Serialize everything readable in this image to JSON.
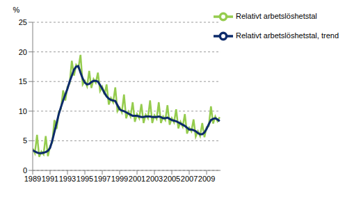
{
  "chart_data": {
    "type": "line",
    "y_label": "%",
    "grid": true,
    "legend": "upper right",
    "xlim": [
      1989,
      2010.6
    ],
    "xticks": [
      1989,
      1991,
      1993,
      1995,
      1997,
      1999,
      2001,
      2003,
      2005,
      2007,
      2009
    ],
    "ylim": [
      0,
      25
    ],
    "yticks": [
      0,
      5,
      10,
      15,
      20,
      25
    ],
    "x": [
      1989,
      1989.25,
      1989.5,
      1989.75,
      1990,
      1990.25,
      1990.5,
      1990.75,
      1991,
      1991.25,
      1991.5,
      1991.75,
      1992,
      1992.25,
      1992.5,
      1992.75,
      1993,
      1993.25,
      1993.5,
      1993.75,
      1994,
      1994.25,
      1994.5,
      1994.75,
      1995,
      1995.25,
      1995.5,
      1995.75,
      1996,
      1996.25,
      1996.5,
      1996.75,
      1997,
      1997.25,
      1997.5,
      1997.75,
      1998,
      1998.25,
      1998.5,
      1998.75,
      1999,
      1999.25,
      1999.5,
      1999.75,
      2000,
      2000.25,
      2000.5,
      2000.75,
      2001,
      2001.25,
      2001.5,
      2001.75,
      2002,
      2002.25,
      2002.5,
      2002.75,
      2003,
      2003.25,
      2003.5,
      2003.75,
      2004,
      2004.25,
      2004.5,
      2004.75,
      2005,
      2005.25,
      2005.5,
      2005.75,
      2006,
      2006.25,
      2006.5,
      2006.75,
      2007,
      2007.25,
      2007.5,
      2007.75,
      2008,
      2008.25,
      2008.5,
      2008.75,
      2009,
      2009.25,
      2009.5,
      2009.75,
      2010,
      2010.25,
      2010.5
    ],
    "series": [
      {
        "name": "Relativt arbetslöshetstal",
        "color": "#95cc4e",
        "values": [
          3.7,
          2.9,
          6.0,
          2.3,
          3.2,
          2.7,
          5.8,
          2.4,
          4.1,
          4.7,
          8.5,
          7.0,
          9.8,
          10.4,
          13.5,
          11.8,
          14.1,
          14.7,
          18.5,
          16.0,
          17.8,
          17.3,
          19.5,
          14.5,
          15.1,
          14.2,
          16.8,
          13.9,
          15.4,
          14.8,
          16.5,
          13.4,
          14.1,
          12.8,
          14.5,
          11.1,
          12.2,
          11.5,
          14.0,
          10.0,
          10.6,
          9.8,
          12.8,
          8.8,
          9.9,
          9.1,
          11.5,
          8.2,
          9.5,
          8.8,
          11.2,
          8.0,
          9.4,
          8.8,
          11.8,
          8.0,
          9.3,
          8.7,
          11.5,
          8.0,
          9.1,
          8.5,
          11.0,
          7.7,
          8.8,
          8.1,
          10.3,
          7.1,
          8.2,
          7.4,
          9.5,
          6.2,
          7.2,
          6.6,
          8.6,
          5.7,
          6.6,
          5.8,
          8.0,
          5.6,
          7.3,
          7.5,
          10.8,
          7.9,
          9.1,
          8.3,
          9.0
        ]
      },
      {
        "name": "Relativt arbetslöshetstal, trend",
        "color": "#0d2b6b",
        "values": [
          3.4,
          3.2,
          3.0,
          2.9,
          2.9,
          3.0,
          3.1,
          3.3,
          3.8,
          5.0,
          6.5,
          8.0,
          9.5,
          10.7,
          11.8,
          12.8,
          13.8,
          15.0,
          16.0,
          17.0,
          17.5,
          17.6,
          16.5,
          15.5,
          14.8,
          14.5,
          14.6,
          14.9,
          15.1,
          15.1,
          15.0,
          14.4,
          13.8,
          13.1,
          12.5,
          12.1,
          11.9,
          11.8,
          11.7,
          11.0,
          10.3,
          10.1,
          10.0,
          9.8,
          9.6,
          9.4,
          9.2,
          9.2,
          9.2,
          9.1,
          9.0,
          9.0,
          9.1,
          9.1,
          9.1,
          9.0,
          9.0,
          9.0,
          9.1,
          9.0,
          8.8,
          8.8,
          8.9,
          8.7,
          8.5,
          8.4,
          8.3,
          8.1,
          7.9,
          7.7,
          7.5,
          7.2,
          6.9,
          6.9,
          6.8,
          6.6,
          6.3,
          6.1,
          6.1,
          6.4,
          7.0,
          7.8,
          8.5,
          8.7,
          8.8,
          8.6,
          8.3
        ]
      }
    ]
  }
}
